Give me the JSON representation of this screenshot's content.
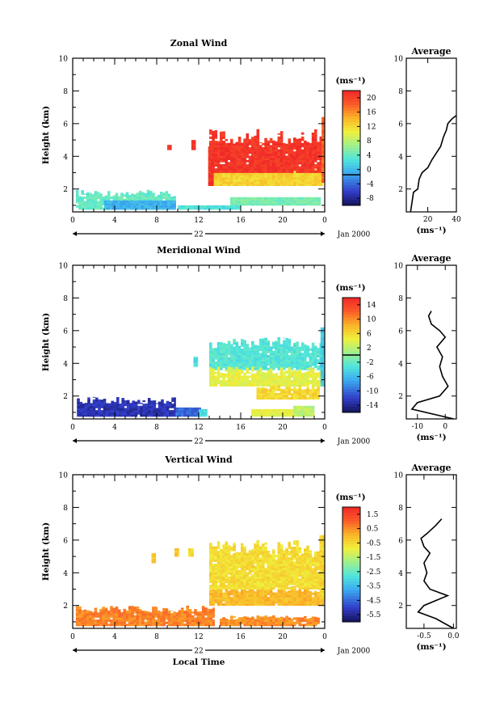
{
  "figure": {
    "bottom_xlabel": "Local Time"
  },
  "chart_data": [
    {
      "type": "heatmap",
      "id": "zonal",
      "title": "Zonal Wind",
      "ylabel": "Height (km)",
      "x_ticks": [
        "0",
        "4",
        "8",
        "12",
        "16",
        "20",
        "0"
      ],
      "date_label": "22",
      "date_suffix": "Jan 2000",
      "xlim": [
        0,
        24
      ],
      "ylim": [
        0.6,
        10
      ],
      "y_ticks": [
        "2",
        "4",
        "6",
        "8",
        "10"
      ],
      "colorbar": {
        "unit": "(ms⁻¹)",
        "min": -8,
        "max": 22,
        "ticks": [
          "20",
          "16",
          "12",
          "8",
          "4",
          "0",
          "-4",
          "-8"
        ],
        "contour": 0
      },
      "regions": [
        {
          "t0": 0.3,
          "t1": 9.8,
          "z0": 0.75,
          "z1": 1.95,
          "value": 5,
          "ragged": true
        },
        {
          "t0": 3.0,
          "t1": 9.8,
          "z0": 0.75,
          "z1": 1.3,
          "value": 1
        },
        {
          "t0": 10.0,
          "t1": 16.0,
          "z0": 0.75,
          "z1": 1.0,
          "value": 4
        },
        {
          "t0": 15.0,
          "t1": 23.6,
          "z0": 1.0,
          "z1": 1.5,
          "value": 6
        },
        {
          "t0": 13.0,
          "t1": 23.8,
          "z0": 2.2,
          "z1": 3.2,
          "value": 13
        },
        {
          "t0": 13.0,
          "t1": 23.8,
          "z0": 3.0,
          "z1": 5.7,
          "value": 21,
          "ragged": true
        },
        {
          "t0": 9.0,
          "t1": 9.4,
          "z0": 4.4,
          "z1": 4.7,
          "value": 21
        },
        {
          "t0": 11.3,
          "t1": 11.7,
          "z0": 4.4,
          "z1": 5.0,
          "value": 21
        },
        {
          "t0": 12.9,
          "t1": 13.4,
          "z0": 2.2,
          "z1": 4.6,
          "value": 21
        },
        {
          "t0": 23.7,
          "t1": 24.0,
          "z0": 2.4,
          "z1": 6.4,
          "value": 18
        }
      ],
      "average": {
        "xlim": [
          5,
          40
        ],
        "x_ticks": [
          "20",
          "40"
        ],
        "xlabel": "(ms⁻¹)",
        "profile": [
          [
            8,
            0.6
          ],
          [
            9,
            1.2
          ],
          [
            10,
            1.8
          ],
          [
            13,
            2.0
          ],
          [
            14,
            2.6
          ],
          [
            16,
            3.0
          ],
          [
            20,
            3.3
          ],
          [
            23,
            3.8
          ],
          [
            26,
            4.2
          ],
          [
            29,
            4.6
          ],
          [
            31,
            5.2
          ],
          [
            33,
            5.6
          ],
          [
            34,
            6.0
          ],
          [
            37,
            6.3
          ],
          [
            40,
            6.5
          ]
        ]
      }
    },
    {
      "type": "heatmap",
      "id": "meridional",
      "title": "Meridional Wind",
      "ylabel": "Height (km)",
      "x_ticks": [
        "0",
        "4",
        "8",
        "12",
        "16",
        "20",
        "0"
      ],
      "date_label": "22",
      "date_suffix": "Jan 2000",
      "xlim": [
        0,
        24
      ],
      "ylim": [
        0.6,
        10
      ],
      "y_ticks": [
        "2",
        "4",
        "6",
        "8",
        "10"
      ],
      "colorbar": {
        "unit": "(ms⁻¹)",
        "min": -16,
        "max": 16,
        "ticks": [
          "14",
          "10",
          "6",
          "2",
          "-2",
          "-6",
          "-10",
          "-14"
        ],
        "contour": 0
      },
      "regions": [
        {
          "t0": 0.4,
          "t1": 9.8,
          "z0": 0.75,
          "z1": 1.95,
          "value": -13,
          "ragged": true
        },
        {
          "t0": 9.8,
          "t1": 12.2,
          "z0": 0.75,
          "z1": 1.3,
          "value": -10
        },
        {
          "t0": 12.0,
          "t1": 12.8,
          "z0": 0.75,
          "z1": 1.2,
          "value": -4
        },
        {
          "t0": 17.0,
          "t1": 21.0,
          "z0": 0.75,
          "z1": 1.2,
          "value": 4
        },
        {
          "t0": 21.0,
          "t1": 23.0,
          "z0": 0.75,
          "z1": 1.4,
          "value": 2
        },
        {
          "t0": 13.0,
          "t1": 23.9,
          "z0": 3.6,
          "z1": 5.6,
          "value": -3,
          "ragged": true
        },
        {
          "t0": 13.0,
          "t1": 23.9,
          "z0": 2.6,
          "z1": 3.8,
          "value": 4,
          "ragged": true
        },
        {
          "t0": 17.5,
          "t1": 23.5,
          "z0": 1.8,
          "z1": 2.7,
          "value": 6,
          "ragged": true
        },
        {
          "t0": 11.5,
          "t1": 11.9,
          "z0": 3.8,
          "z1": 4.4,
          "value": -4
        },
        {
          "t0": 23.6,
          "t1": 24.0,
          "z0": 2.6,
          "z1": 6.2,
          "value": -5
        }
      ],
      "average": {
        "xlim": [
          -14,
          4
        ],
        "x_ticks": [
          "-10",
          "0"
        ],
        "xlabel": "(ms⁻¹)",
        "profile": [
          [
            3,
            0.6
          ],
          [
            -12,
            1.2
          ],
          [
            -10,
            1.6
          ],
          [
            -2,
            2.0
          ],
          [
            1,
            2.6
          ],
          [
            -1,
            3.2
          ],
          [
            -2,
            3.8
          ],
          [
            -1,
            4.4
          ],
          [
            -3,
            5.0
          ],
          [
            0,
            5.6
          ],
          [
            -2,
            6.0
          ],
          [
            -5,
            6.4
          ],
          [
            -6,
            6.9
          ],
          [
            -5,
            7.2
          ]
        ]
      }
    },
    {
      "type": "heatmap",
      "id": "vertical",
      "title": "Vertical Wind",
      "ylabel": "Height (km)",
      "x_ticks": [
        "0",
        "4",
        "8",
        "12",
        "16",
        "20",
        "0"
      ],
      "date_label": "22",
      "date_suffix": "Jan 2000",
      "xlim": [
        0,
        24
      ],
      "ylim": [
        0.6,
        10
      ],
      "y_ticks": [
        "2",
        "4",
        "6",
        "8",
        "10"
      ],
      "colorbar": {
        "unit": "(ms⁻¹)",
        "min": -7.0,
        "max": 2.0,
        "ticks": [
          "1.5",
          "0.5",
          "-0.5",
          "-1.5",
          "-2.5",
          "-3.5",
          "-4.5",
          "-5.5"
        ],
        "contour": null
      },
      "regions": [
        {
          "t0": 0.3,
          "t1": 13.5,
          "z0": 0.75,
          "z1": 2.0,
          "value": 0.4,
          "ragged": true
        },
        {
          "t0": 14.0,
          "t1": 23.5,
          "z0": 0.75,
          "z1": 1.4,
          "value": 0.3,
          "ragged": true
        },
        {
          "t0": 13.0,
          "t1": 23.9,
          "z0": 2.0,
          "z1": 3.2,
          "value": -0.3,
          "ragged": true
        },
        {
          "t0": 13.0,
          "t1": 23.9,
          "z0": 3.0,
          "z1": 6.0,
          "value": -0.9,
          "ragged": true
        },
        {
          "t0": 7.5,
          "t1": 7.9,
          "z0": 4.6,
          "z1": 5.2,
          "value": -0.5
        },
        {
          "t0": 9.7,
          "t1": 10.1,
          "z0": 5.0,
          "z1": 5.5,
          "value": -0.5
        },
        {
          "t0": 11.0,
          "t1": 11.5,
          "z0": 5.0,
          "z1": 5.5,
          "value": -0.8
        },
        {
          "t0": 23.5,
          "t1": 24.0,
          "z0": 2.4,
          "z1": 6.3,
          "value": -0.8
        }
      ],
      "average": {
        "xlim": [
          -0.8,
          0.05
        ],
        "x_ticks": [
          "-0.5",
          "0.0"
        ],
        "xlabel": "(ms⁻¹)",
        "profile": [
          [
            0.0,
            0.6
          ],
          [
            -0.3,
            1.2
          ],
          [
            -0.6,
            1.6
          ],
          [
            -0.5,
            2.0
          ],
          [
            -0.3,
            2.3
          ],
          [
            -0.1,
            2.6
          ],
          [
            -0.4,
            3.0
          ],
          [
            -0.5,
            3.5
          ],
          [
            -0.45,
            4.0
          ],
          [
            -0.5,
            4.6
          ],
          [
            -0.4,
            5.2
          ],
          [
            -0.5,
            5.6
          ],
          [
            -0.55,
            6.1
          ],
          [
            -0.45,
            6.4
          ],
          [
            -0.3,
            6.9
          ],
          [
            -0.2,
            7.3
          ]
        ]
      }
    }
  ]
}
